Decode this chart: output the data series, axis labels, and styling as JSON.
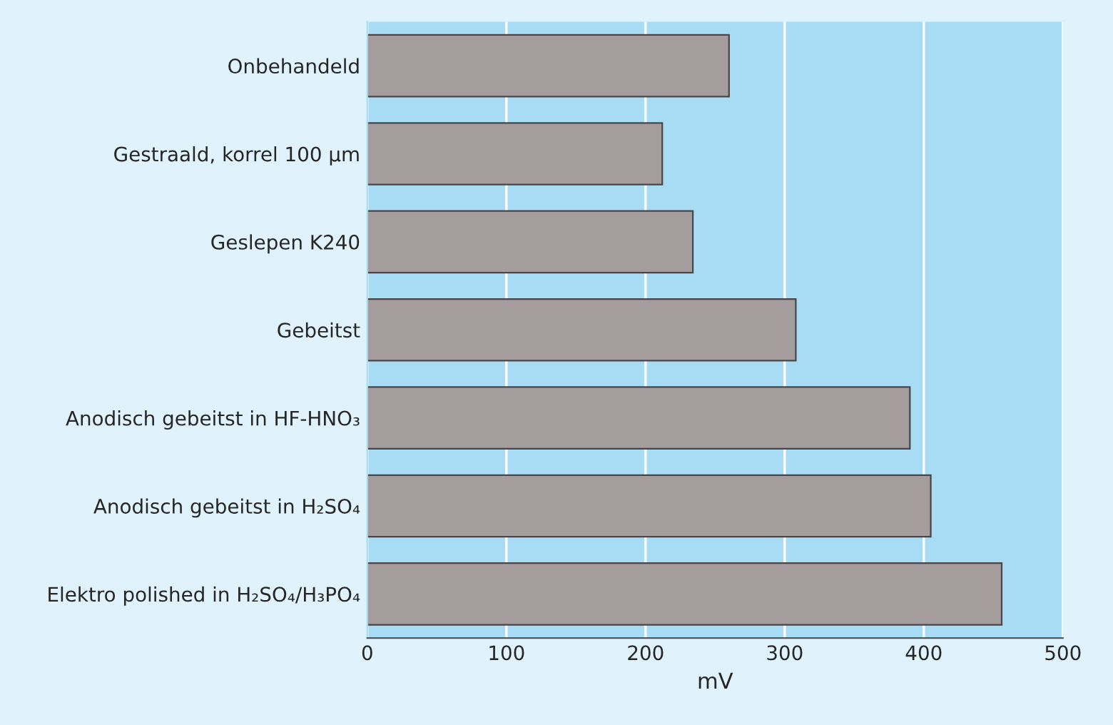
{
  "chart_data": {
    "type": "bar",
    "orientation": "horizontal",
    "xlabel": "mV",
    "categories": [
      "Onbehandeld",
      "Gestraald, korrel 100 µm",
      "Geslepen K240",
      "Gebeitst",
      "Anodisch gebeitst in HF-HNO₃",
      "Anodisch gebeitst in H₂SO₄",
      "Elektro polished in H₂SO₄/H₃PO₄"
    ],
    "values": [
      260,
      212,
      234,
      308,
      390,
      405,
      456
    ],
    "color": "#a59c9e",
    "xlim": [
      0,
      500
    ],
    "xticks": [
      0,
      100,
      200,
      300,
      400,
      500
    ],
    "grid": "x"
  }
}
